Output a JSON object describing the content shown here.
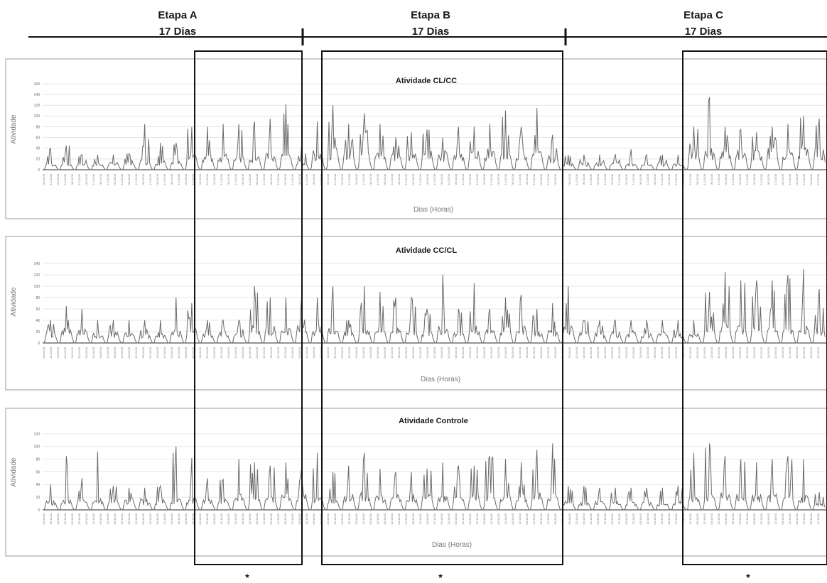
{
  "stages": [
    {
      "name": "Etapa A",
      "duration": "17 Dias"
    },
    {
      "name": "Etapa B",
      "duration": "17 Dias"
    },
    {
      "name": "Etapa C",
      "duration": "17 Dias"
    }
  ],
  "significance_marker": "*",
  "time_tick_labels": [
    "00:10:00",
    "12:10:00"
  ],
  "chart_data": [
    {
      "type": "bar",
      "title": "Atividade CL/CC",
      "xlabel": "Dias (Horas)",
      "ylabel": "Atividade",
      "ylim": [
        0,
        160
      ],
      "yticks": [
        0,
        20,
        40,
        60,
        80,
        100,
        120,
        140,
        160
      ],
      "grid": true,
      "daily_peak": [
        40,
        45,
        28,
        28,
        28,
        30,
        85,
        50,
        50,
        80,
        80,
        85,
        85,
        90,
        95,
        122,
        45,
        90,
        120,
        85,
        105,
        85,
        60,
        70,
        75,
        60,
        80,
        80,
        85,
        110,
        80,
        115,
        65,
        28,
        28,
        28,
        28,
        38,
        28,
        28,
        28,
        80,
        135,
        80,
        75,
        70,
        80,
        85,
        100,
        95
      ],
      "daily_base": [
        10,
        10,
        10,
        10,
        10,
        10,
        14,
        12,
        12,
        20,
        22,
        22,
        22,
        22,
        22,
        24,
        12,
        26,
        30,
        28,
        26,
        26,
        24,
        24,
        26,
        24,
        26,
        26,
        28,
        28,
        26,
        28,
        20,
        10,
        10,
        10,
        10,
        10,
        10,
        10,
        10,
        28,
        30,
        30,
        28,
        28,
        30,
        30,
        32,
        30
      ]
    },
    {
      "type": "bar",
      "title": "Atividade CC/CL",
      "xlabel": "Dias (Horas)",
      "ylabel": "Atividade",
      "ylim": [
        0,
        140
      ],
      "yticks": [
        0,
        20,
        40,
        60,
        80,
        100,
        120,
        140
      ],
      "grid": true,
      "daily_peak": [
        40,
        65,
        60,
        40,
        40,
        40,
        40,
        40,
        80,
        70,
        40,
        40,
        40,
        100,
        80,
        80,
        80,
        80,
        100,
        40,
        100,
        90,
        80,
        80,
        60,
        120,
        60,
        105,
        60,
        80,
        85,
        60,
        70,
        100,
        40,
        40,
        40,
        40,
        40,
        40,
        40,
        40,
        90,
        125,
        110,
        110,
        110,
        120,
        130,
        95
      ],
      "daily_base": [
        14,
        20,
        20,
        14,
        14,
        14,
        14,
        14,
        18,
        18,
        14,
        14,
        14,
        22,
        22,
        22,
        22,
        22,
        22,
        14,
        22,
        22,
        22,
        22,
        18,
        24,
        18,
        22,
        18,
        22,
        22,
        18,
        18,
        22,
        14,
        14,
        14,
        14,
        14,
        14,
        14,
        14,
        22,
        26,
        24,
        24,
        24,
        24,
        26,
        22
      ],
      "trough_value": 0
    },
    {
      "type": "bar",
      "title": "Atividade Controle",
      "xlabel": "Dias (Horas)",
      "ylabel": "Atividade",
      "ylim": [
        0,
        120
      ],
      "yticks": [
        0,
        20,
        40,
        60,
        80,
        100,
        120
      ],
      "grid": true,
      "daily_peak": [
        40,
        85,
        50,
        92,
        38,
        35,
        35,
        38,
        100,
        82,
        50,
        48,
        80,
        75,
        70,
        75,
        65,
        90,
        60,
        70,
        90,
        65,
        60,
        60,
        65,
        75,
        70,
        70,
        85,
        80,
        75,
        95,
        105,
        38,
        38,
        35,
        35,
        35,
        35,
        35,
        38,
        90,
        105,
        85,
        80,
        75,
        80,
        85,
        80,
        28
      ],
      "daily_base": [
        12,
        12,
        12,
        14,
        12,
        12,
        12,
        12,
        14,
        14,
        12,
        12,
        18,
        18,
        18,
        18,
        18,
        18,
        12,
        18,
        20,
        18,
        18,
        18,
        18,
        18,
        18,
        18,
        20,
        20,
        18,
        20,
        20,
        10,
        10,
        10,
        10,
        10,
        10,
        10,
        10,
        18,
        20,
        20,
        18,
        18,
        18,
        18,
        18,
        8
      ]
    }
  ]
}
